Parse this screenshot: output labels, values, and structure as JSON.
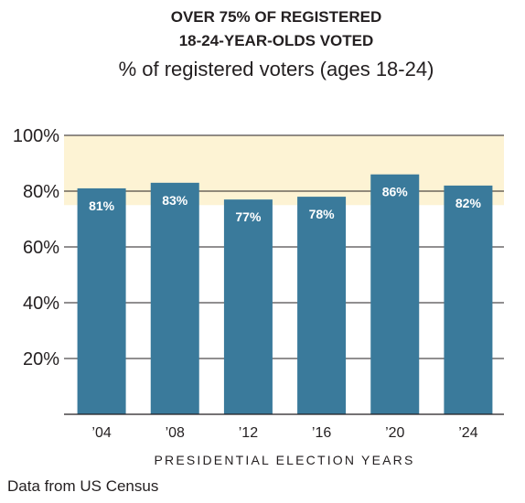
{
  "chart_data": {
    "type": "bar",
    "title_lines": [
      "OVER 75% OF REGISTERED",
      "18-24-YEAR-OLDS VOTED"
    ],
    "subtitle": "% of registered voters (ages 18-24)",
    "categories": [
      "’04",
      "’08",
      "’12",
      "’16",
      "’20",
      "’24"
    ],
    "values": [
      81,
      83,
      77,
      78,
      86,
      82
    ],
    "value_labels": [
      "81%",
      "83%",
      "77%",
      "78%",
      "86%",
      "82%"
    ],
    "xlabel": "PRESIDENTIAL ELECTION YEARS",
    "ylabel": "",
    "ylim": [
      0,
      100
    ],
    "yticks": [
      20,
      40,
      60,
      80,
      100
    ],
    "ytick_labels": [
      "20%",
      "40%",
      "60%",
      "80%",
      "100%"
    ],
    "highlight_band": [
      75,
      100
    ],
    "grid": true,
    "bar_color": "#3a7a9b",
    "band_color": "#fdf3d4",
    "source": "Data from US Census"
  }
}
